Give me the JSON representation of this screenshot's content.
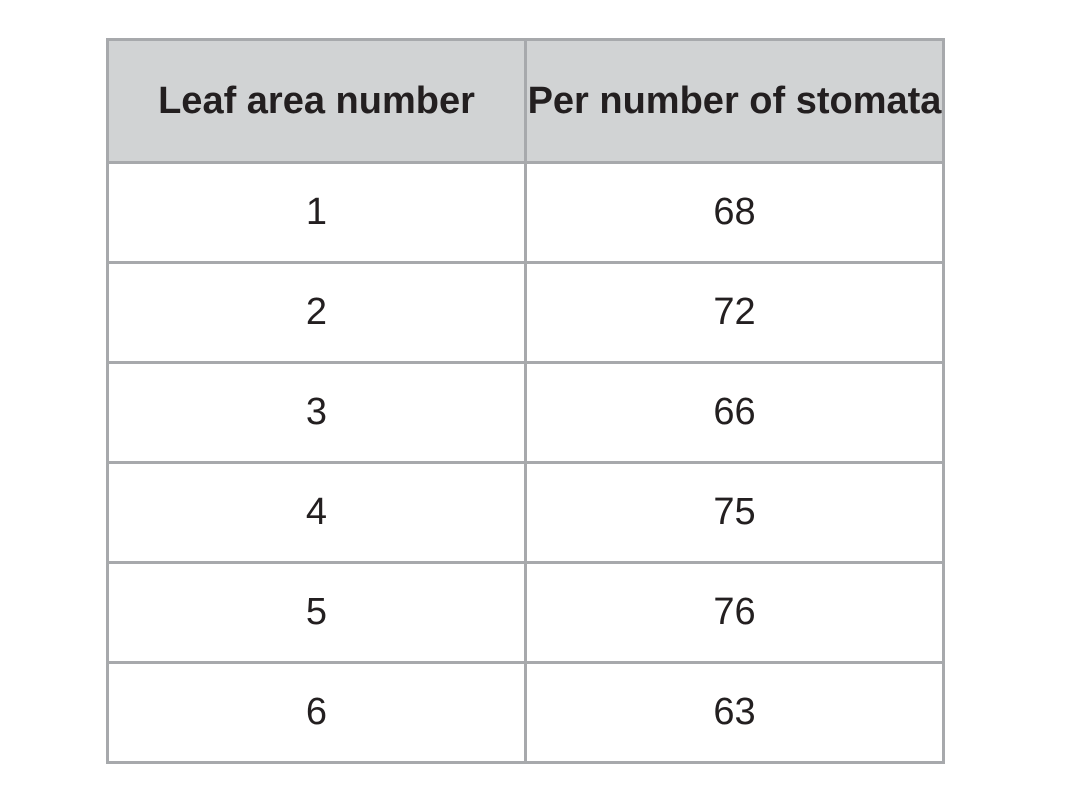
{
  "table": {
    "headers": [
      "Leaf area number",
      "Per number of stomata"
    ],
    "rows": [
      [
        "1",
        "68"
      ],
      [
        "2",
        "72"
      ],
      [
        "3",
        "66"
      ],
      [
        "4",
        "75"
      ],
      [
        "5",
        "76"
      ],
      [
        "6",
        "63"
      ]
    ]
  },
  "colors": {
    "header_background": "#d1d3d4",
    "border": "#a7a9ac",
    "text": "#231f20"
  }
}
